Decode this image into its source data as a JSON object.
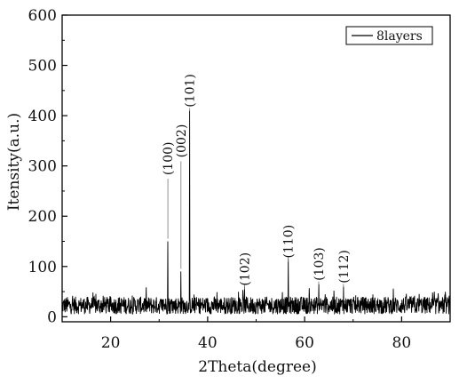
{
  "chart_data": {
    "type": "line",
    "xlabel": "2Theta(degree)",
    "ylabel": "Itensity(a.u.)",
    "xlim": [
      10,
      90
    ],
    "ylim": [
      -10,
      600
    ],
    "x_ticks": [
      20,
      40,
      60,
      80
    ],
    "y_ticks": [
      0,
      100,
      200,
      300,
      400,
      500,
      600
    ],
    "x_tick_labels": [
      "20",
      "40",
      "60",
      "80"
    ],
    "y_tick_labels": [
      "0",
      "100",
      "200",
      "300",
      "400",
      "500",
      "600"
    ],
    "legend": {
      "position": "top-right",
      "entries": [
        "8layers"
      ]
    },
    "grid": false,
    "series": [
      {
        "name": "8layers",
        "color": "#000000",
        "baseline_range": [
          5,
          40
        ],
        "peaks": [
          {
            "x": 31.8,
            "y": 150,
            "label": "(100)"
          },
          {
            "x": 34.5,
            "y": 90,
            "label": "(002)"
          },
          {
            "x": 36.3,
            "y": 410,
            "label": "(101)"
          },
          {
            "x": 47.6,
            "y": 60,
            "label": "(102)"
          },
          {
            "x": 56.6,
            "y": 115,
            "label": "(110)"
          },
          {
            "x": 62.9,
            "y": 65,
            "label": "(103)"
          },
          {
            "x": 68.0,
            "y": 60,
            "label": "(112)"
          }
        ]
      }
    ],
    "annotations": [
      {
        "text": "(100)",
        "x": 31.8,
        "y": 285
      },
      {
        "text": "(002)",
        "x": 34.5,
        "y": 320
      },
      {
        "text": "(101)",
        "x": 36.3,
        "y": 420
      },
      {
        "text": "(102)",
        "x": 47.6,
        "y": 65
      },
      {
        "text": "(110)",
        "x": 56.6,
        "y": 120
      },
      {
        "text": "(103)",
        "x": 62.9,
        "y": 75
      },
      {
        "text": "(112)",
        "x": 68.0,
        "y": 70
      }
    ]
  }
}
